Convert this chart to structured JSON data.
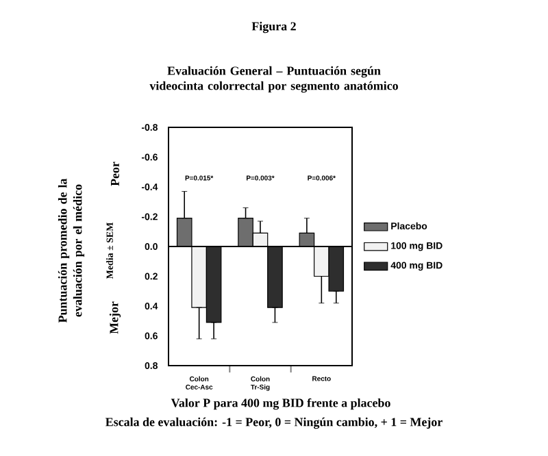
{
  "chart_data": {
    "type": "bar",
    "title": "Figura 2",
    "subtitle": "Evaluación General – Puntuación según videocinta colorrectal por segmento anatómico",
    "ylabel": "Puntuación promedio de la evaluación por el médico",
    "categories": [
      "Colon Cec-Asc",
      "Colon Tr-Sig",
      "Recto"
    ],
    "series": [
      {
        "name": "Placebo",
        "color": "#6e6e6e",
        "values": [
          -0.19,
          -0.19,
          -0.09
        ],
        "errors": [
          [
            -0.37,
            -0.19
          ],
          [
            -0.26,
            -0.19
          ],
          [
            -0.19,
            -0.09
          ]
        ]
      },
      {
        "name": "100 mg BID",
        "color": "#f2f2f2",
        "values": [
          0.41,
          -0.09,
          0.2
        ],
        "errors": [
          [
            0.41,
            0.62
          ],
          [
            -0.17,
            -0.09
          ],
          [
            0.2,
            0.38
          ]
        ]
      },
      {
        "name": "400 mg BID",
        "color": "#2e2e2e",
        "values": [
          0.51,
          0.41,
          0.3
        ],
        "errors": [
          [
            0.51,
            0.62
          ],
          [
            0.41,
            0.51
          ],
          [
            0.3,
            0.38
          ]
        ]
      }
    ],
    "ylim": [
      0.8,
      -0.8
    ],
    "yticks": [
      -0.8,
      -0.6,
      -0.4,
      -0.2,
      {
        "value": 0,
        "label": "0.0"
      },
      0.2,
      0.4,
      0.6,
      0.8
    ],
    "ref_lines": [
      {
        "axis": "y",
        "value": 0
      }
    ],
    "legend": "right",
    "grid": false,
    "annotations": [
      "P=0.015*",
      "P=0.003*",
      "P=0.006*",
      "Media ± SEM",
      "Peor",
      "Mejor",
      "Valor P para 400 mg BID frente a placebo",
      "Escala de evaluación: -1 = Peor, 0 = Ningún cambio, + 1 = Mejor"
    ]
  }
}
